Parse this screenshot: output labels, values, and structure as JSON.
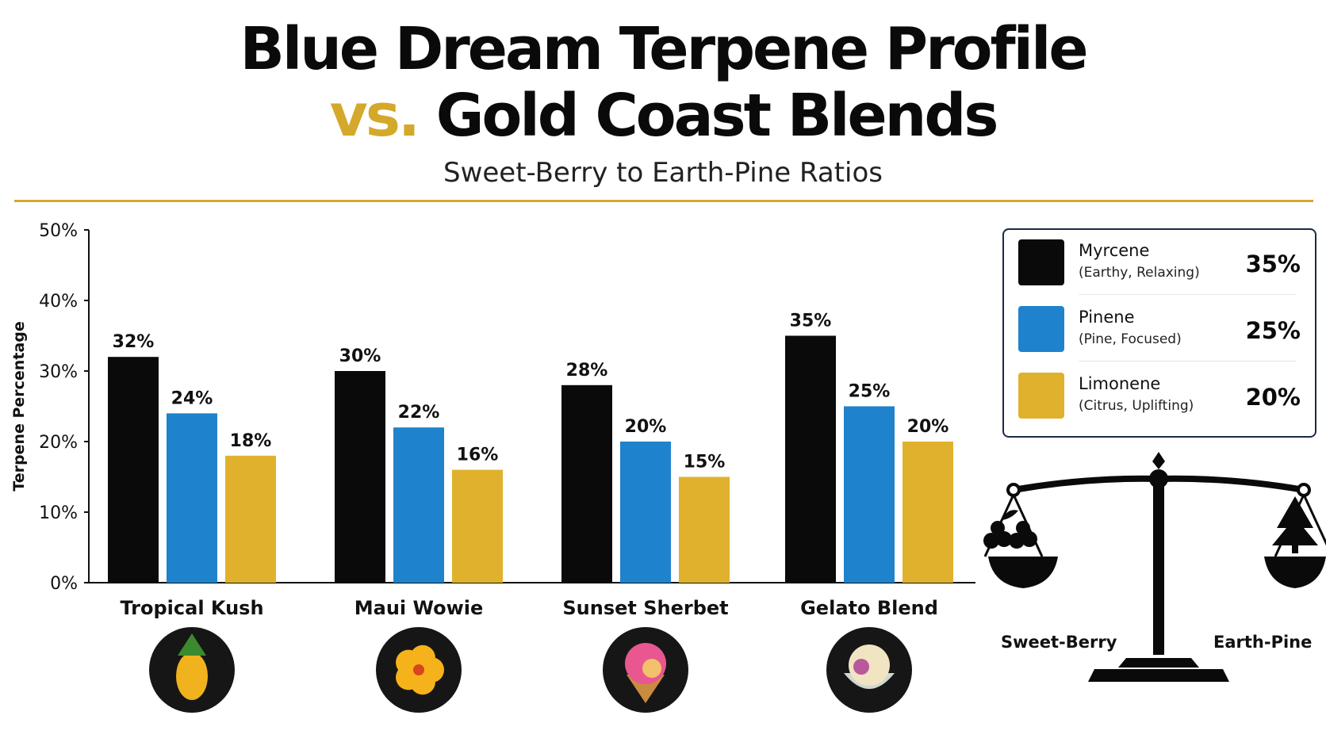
{
  "title": {
    "line1": "Blue Dream Terpene Profile",
    "vs": "vs.",
    "line2": "Gold Coast Blends",
    "subtitle": "Sweet-Berry to Earth-Pine Ratios"
  },
  "chart_data": {
    "type": "bar",
    "ylabel": "Terpene Percentage",
    "ylim": [
      0,
      50
    ],
    "yticks": [
      "0%",
      "10%",
      "20%",
      "30%",
      "40%",
      "50%"
    ],
    "categories": [
      "Tropical Kush",
      "Maui Wowie",
      "Sunset Sherbet",
      "Gelato Blend"
    ],
    "series": [
      {
        "name": "Myrcene",
        "color": "#0a0a0a",
        "values": [
          32,
          30,
          28,
          35
        ],
        "labels": [
          "32%",
          "30%",
          "28%",
          "35%"
        ]
      },
      {
        "name": "Pinene",
        "color": "#1f82cc",
        "values": [
          24,
          22,
          20,
          25
        ],
        "labels": [
          "24%",
          "22%",
          "20%",
          "25%"
        ]
      },
      {
        "name": "Limonene",
        "color": "#e0b12d",
        "values": [
          18,
          16,
          15,
          20
        ],
        "labels": [
          "18%",
          "16%",
          "15%",
          "20%"
        ]
      }
    ],
    "category_icons": [
      "pineapple-icon",
      "hibiscus-flower-icon",
      "ice-cream-scoop-icon",
      "gelato-bowl-icon"
    ],
    "grid": false
  },
  "legend": {
    "items": [
      {
        "name": "Myrcene",
        "desc": "(Earthy, Relaxing)",
        "value": "35%",
        "color": "#0a0a0a"
      },
      {
        "name": "Pinene",
        "desc": "(Pine, Focused)",
        "value": "25%",
        "color": "#1f82cc"
      },
      {
        "name": "Limonene",
        "desc": "(Citrus, Uplifting)",
        "value": "20%",
        "color": "#e0b12d"
      }
    ]
  },
  "scale": {
    "left_label": "Sweet-Berry",
    "right_label": "Earth-Pine",
    "icons": [
      "balance-scale-icon",
      "berries-icon",
      "pine-tree-icon"
    ]
  },
  "colors": {
    "accent": "#d4a82a",
    "legend_border": "#1d2a44"
  }
}
